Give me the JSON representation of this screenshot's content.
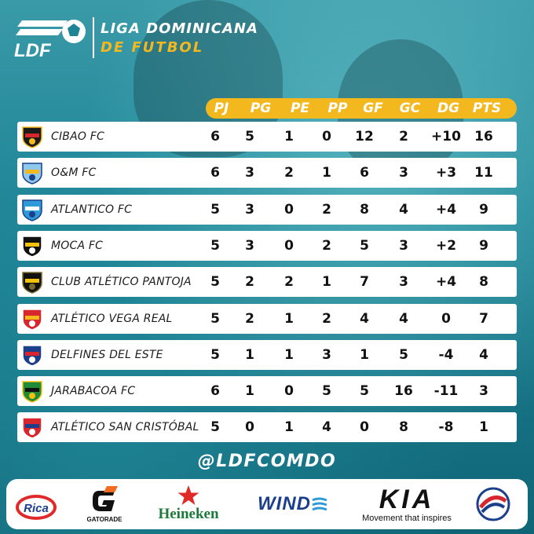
{
  "header": {
    "logo_text": "LDF",
    "league_line1": "LIGA DOMINICANA",
    "league_line2": "DE FUTBOL"
  },
  "columns": [
    "PJ",
    "PG",
    "PE",
    "PP",
    "GF",
    "GC",
    "DG",
    "PTS"
  ],
  "rows": [
    {
      "team": "CIBAO FC",
      "pj": "6",
      "pg": "5",
      "pe": "1",
      "pp": "0",
      "gf": "12",
      "gc": "2",
      "dg": "+10",
      "pts": "16"
    },
    {
      "team": "O&M FC",
      "pj": "6",
      "pg": "3",
      "pe": "2",
      "pp": "1",
      "gf": "6",
      "gc": "3",
      "dg": "+3",
      "pts": "11"
    },
    {
      "team": "ATLANTICO FC",
      "pj": "5",
      "pg": "3",
      "pe": "0",
      "pp": "2",
      "gf": "8",
      "gc": "4",
      "dg": "+4",
      "pts": "9"
    },
    {
      "team": "MOCA FC",
      "pj": "5",
      "pg": "3",
      "pe": "0",
      "pp": "2",
      "gf": "5",
      "gc": "3",
      "dg": "+2",
      "pts": "9"
    },
    {
      "team": "CLUB ATLÉTICO PANTOJA",
      "pj": "5",
      "pg": "2",
      "pe": "2",
      "pp": "1",
      "gf": "7",
      "gc": "3",
      "dg": "+4",
      "pts": "8"
    },
    {
      "team": "ATLÉTICO VEGA REAL",
      "pj": "5",
      "pg": "2",
      "pe": "1",
      "pp": "2",
      "gf": "4",
      "gc": "4",
      "dg": "0",
      "pts": "7"
    },
    {
      "team": "DELFINES DEL ESTE",
      "pj": "5",
      "pg": "1",
      "pe": "1",
      "pp": "3",
      "gf": "1",
      "gc": "5",
      "dg": "-4",
      "pts": "4"
    },
    {
      "team": "JARABACOA FC",
      "pj": "6",
      "pg": "1",
      "pe": "0",
      "pp": "5",
      "gf": "5",
      "gc": "16",
      "dg": "-11",
      "pts": "3"
    },
    {
      "team": "ATLÉTICO SAN CRISTÓBAL",
      "pj": "5",
      "pg": "0",
      "pe": "1",
      "pp": "4",
      "gf": "0",
      "gc": "8",
      "dg": "-8",
      "pts": "1"
    }
  ],
  "badges": [
    {
      "name": "cibao-fc-badge",
      "colors": [
        "#1b1b1b",
        "#d7262d",
        "#f4b81f"
      ]
    },
    {
      "name": "om-fc-badge",
      "colors": [
        "#8fc8ea",
        "#f4b81f",
        "#1c3f8c"
      ]
    },
    {
      "name": "atlantico-fc-badge",
      "colors": [
        "#2e9bd8",
        "#ffffff",
        "#1c3f8c"
      ]
    },
    {
      "name": "moca-fc-badge",
      "colors": [
        "#111111",
        "#f4c20d",
        "#ffffff"
      ]
    },
    {
      "name": "pantoja-badge",
      "colors": [
        "#111111",
        "#f4c20d",
        "#7a6a30"
      ]
    },
    {
      "name": "vega-real-badge",
      "colors": [
        "#d7262d",
        "#f4b81f",
        "#ffffff"
      ]
    },
    {
      "name": "delfines-badge",
      "colors": [
        "#1c3f8c",
        "#d7262d",
        "#ffffff"
      ]
    },
    {
      "name": "jarabacoa-badge",
      "colors": [
        "#1e8a3a",
        "#111111",
        "#f4c20d"
      ]
    },
    {
      "name": "san-cristobal-badge",
      "colors": [
        "#d7262d",
        "#1c3f8c",
        "#ffffff"
      ]
    }
  ],
  "handle": "@LDFCOMDO",
  "sponsors": {
    "rica": "Rica",
    "gatorade": "GATORADE",
    "heineken": "Heineken",
    "wind": "WIND",
    "kia": "KIA",
    "kia_tagline": "Movement that inspires"
  },
  "colors": {
    "accent": "#f4b81f",
    "background": "#1e8395"
  }
}
